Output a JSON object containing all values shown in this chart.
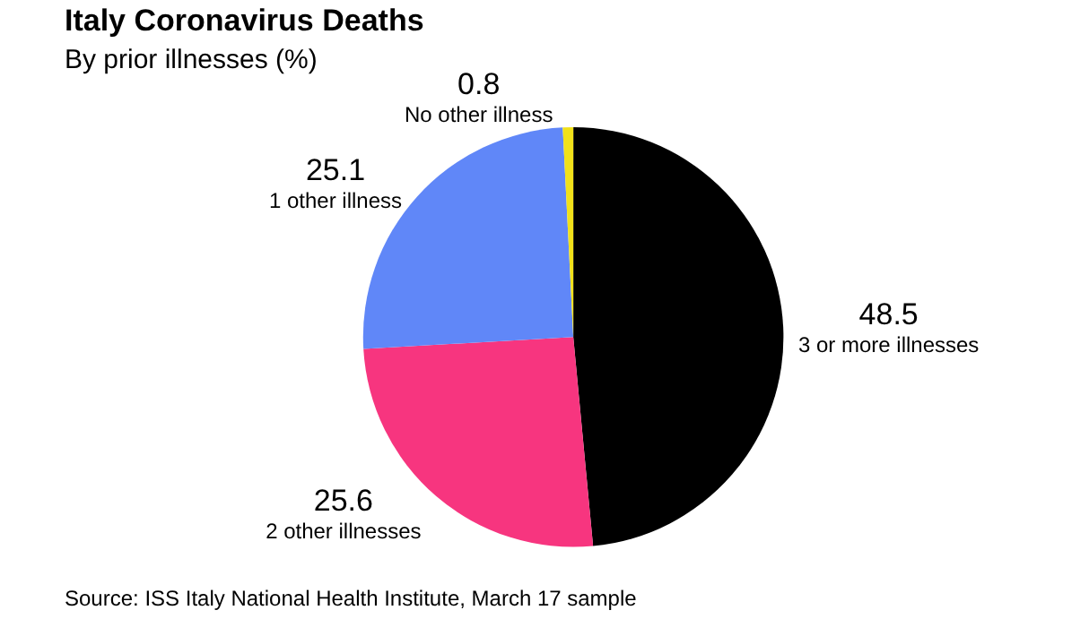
{
  "chart_data": {
    "type": "pie",
    "title": "Italy Coronavirus Deaths",
    "subtitle": "By prior illnesses (%)",
    "categories": [
      "3 or more illnesses",
      "2 other illnesses",
      "1 other illness",
      "No other illness"
    ],
    "values": [
      48.5,
      25.6,
      25.1,
      0.8
    ],
    "colors": [
      "#000000",
      "#f7357f",
      "#6087f8",
      "#f1e11a"
    ],
    "data_labels": true,
    "legend": false,
    "annotations": [
      "Source: ISS Italy National Health Institute, March 17 sample"
    ]
  }
}
